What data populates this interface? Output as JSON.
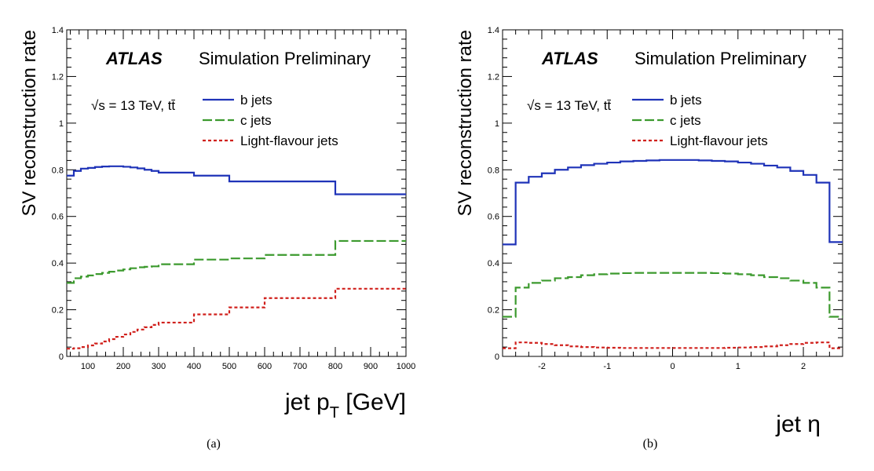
{
  "colors": {
    "b": "#1f33b8",
    "c": "#3c9a2e",
    "light": "#d0201c"
  },
  "experiment": "ATLAS",
  "status_text": "Simulation Preliminary",
  "energy_text": "√s = 13 TeV, tt̄",
  "captions": [
    "(a)",
    "(b)"
  ],
  "chart_data": [
    {
      "type": "line",
      "style": "step",
      "ylabel": "SV reconstruction rate",
      "xlabel": "jet p_T [GeV]",
      "xlim": [
        40,
        1000
      ],
      "ylim": [
        0,
        1.4
      ],
      "xticks": [
        100,
        200,
        300,
        400,
        500,
        600,
        700,
        800,
        900,
        1000
      ],
      "yticks": [
        0,
        0.2,
        0.4,
        0.6,
        0.8,
        1,
        1.2,
        1.4
      ],
      "ytick_labels": [
        "0",
        "0.2",
        "0.4",
        "0.6",
        "0.8",
        "1",
        "1.2",
        "1.4"
      ],
      "legend_placement": "right, below header",
      "edges": [
        40,
        60,
        80,
        100,
        120,
        140,
        160,
        180,
        200,
        220,
        240,
        260,
        280,
        300,
        400,
        500,
        600,
        800,
        1000
      ],
      "series": [
        {
          "name": "b jets",
          "key": "b",
          "dash": "solid",
          "values": [
            0.775,
            0.795,
            0.805,
            0.808,
            0.812,
            0.814,
            0.815,
            0.815,
            0.813,
            0.81,
            0.806,
            0.8,
            0.795,
            0.788,
            0.775,
            0.75,
            0.75,
            0.695
          ]
        },
        {
          "name": "c jets",
          "key": "c",
          "dash": "long",
          "values": [
            0.315,
            0.335,
            0.342,
            0.347,
            0.353,
            0.358,
            0.363,
            0.368,
            0.373,
            0.378,
            0.382,
            0.384,
            0.386,
            0.395,
            0.415,
            0.42,
            0.435,
            0.495
          ]
        },
        {
          "name": "Light-flavour jets",
          "key": "light",
          "dash": "short",
          "values": [
            0.033,
            0.035,
            0.04,
            0.047,
            0.055,
            0.064,
            0.074,
            0.084,
            0.094,
            0.105,
            0.115,
            0.125,
            0.135,
            0.145,
            0.18,
            0.21,
            0.25,
            0.29
          ]
        }
      ]
    },
    {
      "type": "line",
      "style": "step",
      "ylabel": "SV reconstruction rate",
      "xlabel": "jet η",
      "xlim": [
        -2.6,
        2.6
      ],
      "ylim": [
        0,
        1.4
      ],
      "xticks": [
        -2,
        -1,
        0,
        1,
        2
      ],
      "yticks": [
        0,
        0.2,
        0.4,
        0.6,
        0.8,
        1,
        1.2,
        1.4
      ],
      "ytick_labels": [
        "0",
        "0.2",
        "0.4",
        "0.6",
        "0.8",
        "1",
        "1.2",
        "1.4"
      ],
      "legend_placement": "right, below header",
      "edges": [
        -2.6,
        -2.4,
        -2.2,
        -2.0,
        -1.8,
        -1.6,
        -1.4,
        -1.2,
        -1.0,
        -0.8,
        -0.6,
        -0.4,
        -0.2,
        0.0,
        0.2,
        0.4,
        0.6,
        0.8,
        1.0,
        1.2,
        1.4,
        1.6,
        1.8,
        2.0,
        2.2,
        2.4,
        2.6
      ],
      "series": [
        {
          "name": "b jets",
          "key": "b",
          "dash": "solid",
          "values": [
            0.48,
            0.745,
            0.77,
            0.785,
            0.8,
            0.81,
            0.82,
            0.826,
            0.831,
            0.836,
            0.838,
            0.84,
            0.842,
            0.842,
            0.842,
            0.84,
            0.838,
            0.836,
            0.831,
            0.826,
            0.818,
            0.81,
            0.795,
            0.778,
            0.745,
            0.49
          ]
        },
        {
          "name": "c jets",
          "key": "c",
          "dash": "long",
          "values": [
            0.17,
            0.295,
            0.315,
            0.325,
            0.335,
            0.34,
            0.348,
            0.352,
            0.355,
            0.357,
            0.358,
            0.358,
            0.358,
            0.358,
            0.358,
            0.358,
            0.357,
            0.355,
            0.352,
            0.348,
            0.34,
            0.335,
            0.325,
            0.315,
            0.295,
            0.17
          ]
        },
        {
          "name": "Light-flavour jets",
          "key": "light",
          "dash": "short",
          "values": [
            0.035,
            0.06,
            0.058,
            0.053,
            0.048,
            0.043,
            0.04,
            0.038,
            0.037,
            0.036,
            0.036,
            0.036,
            0.036,
            0.036,
            0.036,
            0.036,
            0.036,
            0.037,
            0.038,
            0.04,
            0.043,
            0.048,
            0.053,
            0.058,
            0.06,
            0.035
          ]
        }
      ]
    }
  ]
}
